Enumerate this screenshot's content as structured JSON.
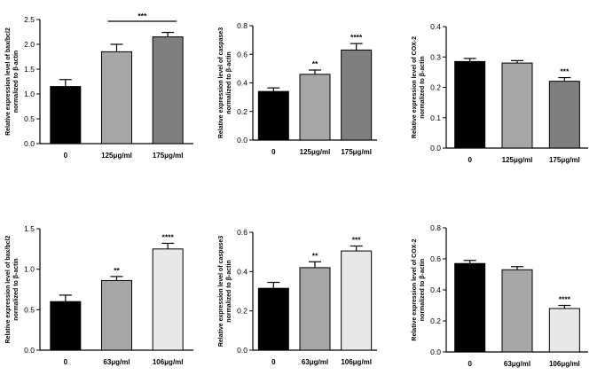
{
  "figure": {
    "background": "#ffffff"
  },
  "chart_data": [
    {
      "type": "bar",
      "categories": [
        "0",
        "125μg/ml",
        "175μg/ml"
      ],
      "values": [
        1.15,
        1.85,
        2.15
      ],
      "errors": [
        0.14,
        0.15,
        0.09
      ],
      "colors": [
        "#000000",
        "#a6a6a6",
        "#7f7f7f"
      ],
      "ylabel_lines": [
        "Relative expression level of bax/bcl2",
        "normalized to β-actin"
      ],
      "ylim": [
        0,
        2.5
      ],
      "yticks": [
        0,
        0.5,
        1,
        1.5,
        2,
        2.5
      ],
      "ytick_labels": [
        "0.0",
        "0.5",
        "1.0",
        "1.5",
        "2.0",
        "2.5"
      ],
      "annotations": [
        {
          "text": "***",
          "type": "bracket",
          "from": 1,
          "to": 2,
          "y": 2.5
        }
      ]
    },
    {
      "type": "bar",
      "categories": [
        "0",
        "125μg/ml",
        "175μg/ml"
      ],
      "values": [
        0.34,
        0.46,
        0.63
      ],
      "errors": [
        0.025,
        0.03,
        0.045
      ],
      "colors": [
        "#000000",
        "#a6a6a6",
        "#7f7f7f"
      ],
      "ylabel_lines": [
        "Relative expression level of caspase3",
        "normalized to β-actin"
      ],
      "ylim": [
        0,
        0.8
      ],
      "yticks": [
        0,
        0.2,
        0.4,
        0.6,
        0.8
      ],
      "ytick_labels": [
        "0.0",
        "0.2",
        "0.4",
        "0.6",
        "0.8"
      ],
      "annotations": [
        {
          "text": "**",
          "bar": 1
        },
        {
          "text": "****",
          "bar": 2
        }
      ]
    },
    {
      "type": "bar",
      "categories": [
        "0",
        "125μg/ml",
        "175μg/ml"
      ],
      "values": [
        0.285,
        0.28,
        0.22
      ],
      "errors": [
        0.01,
        0.008,
        0.012
      ],
      "colors": [
        "#000000",
        "#a6a6a6",
        "#7f7f7f"
      ],
      "ylabel_lines": [
        "Relative expression level of COX-2",
        "normalized to β-actin"
      ],
      "ylim": [
        0,
        0.4
      ],
      "yticks": [
        0,
        0.1,
        0.2,
        0.3,
        0.4
      ],
      "ytick_labels": [
        "0.0",
        "0.1",
        "0.2",
        "0.3",
        "0.4"
      ],
      "annotations": [
        {
          "text": "***",
          "bar": 2
        }
      ]
    },
    {
      "type": "bar",
      "categories": [
        "0",
        "63μg/ml",
        "106μg/ml"
      ],
      "values": [
        0.6,
        0.86,
        1.25
      ],
      "errors": [
        0.08,
        0.05,
        0.07
      ],
      "colors": [
        "#000000",
        "#a6a6a6",
        "#e8e8e8"
      ],
      "ylabel_lines": [
        "Relative expression level of bax/bcl2",
        "normalized to β-actin"
      ],
      "ylim": [
        0,
        1.5
      ],
      "yticks": [
        0,
        0.5,
        1,
        1.5
      ],
      "ytick_labels": [
        "0.0",
        "0.5",
        "1.0",
        "1.5"
      ],
      "annotations": [
        {
          "text": "**",
          "bar": 1
        },
        {
          "text": "****",
          "bar": 2
        }
      ]
    },
    {
      "type": "bar",
      "categories": [
        "0",
        "63μg/ml",
        "106μg/ml"
      ],
      "values": [
        0.315,
        0.42,
        0.505
      ],
      "errors": [
        0.03,
        0.03,
        0.025
      ],
      "colors": [
        "#000000",
        "#a6a6a6",
        "#e8e8e8"
      ],
      "ylabel_lines": [
        "Relative expression level of caspase3",
        "normalized to β-actin"
      ],
      "ylim": [
        0,
        0.6
      ],
      "yticks": [
        0,
        0.2,
        0.4,
        0.6
      ],
      "ytick_labels": [
        "0.0",
        "0.2",
        "0.4",
        "0.6"
      ],
      "annotations": [
        {
          "text": "**",
          "bar": 1
        },
        {
          "text": "***",
          "bar": 2
        }
      ]
    },
    {
      "type": "bar",
      "categories": [
        "0",
        "63μg/ml",
        "106μg/ml"
      ],
      "values": [
        0.57,
        0.53,
        0.28
      ],
      "errors": [
        0.02,
        0.02,
        0.02
      ],
      "colors": [
        "#000000",
        "#a6a6a6",
        "#e8e8e8"
      ],
      "ylabel_lines": [
        "Relative expression level of COX-2",
        "normalized to β-actin"
      ],
      "ylim": [
        0,
        0.8
      ],
      "yticks": [
        0,
        0.2,
        0.4,
        0.6,
        0.8
      ],
      "ytick_labels": [
        "0.0",
        "0.2",
        "0.4",
        "0.6",
        "0.8"
      ],
      "annotations": [
        {
          "text": "****",
          "bar": 2
        }
      ]
    }
  ]
}
